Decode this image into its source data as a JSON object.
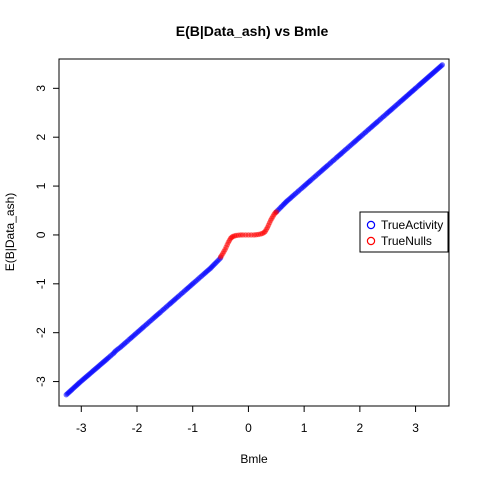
{
  "chart_data": {
    "type": "scatter",
    "title": "E(B|Data_ash) vs Bmle",
    "xlabel": "Bmle",
    "ylabel": "E(B|Data_ash)",
    "xlim": [
      -3.4,
      3.6
    ],
    "ylim": [
      -3.5,
      3.6
    ],
    "xticks": [
      -3,
      -2,
      -1,
      0,
      1,
      2,
      3
    ],
    "yticks": [
      -3,
      -2,
      -1,
      0,
      1,
      2,
      3
    ],
    "grid": false,
    "legend_position": "right",
    "series": [
      {
        "name": "TrueActivity",
        "color": "#0000ff",
        "points": [
          [
            -3.27,
            -3.27
          ],
          [
            -3.03,
            -3.02
          ],
          [
            -2.5,
            -2.5
          ],
          [
            -2.42,
            -2.42
          ],
          [
            -2.38,
            -2.37
          ],
          [
            -2.3,
            -2.3
          ],
          [
            -2.25,
            -2.25
          ],
          [
            -2.2,
            -2.2
          ],
          [
            -2.12,
            -2.12
          ],
          [
            -2.05,
            -2.05
          ],
          [
            -2.0,
            -2.0
          ],
          [
            -1.95,
            -1.95
          ],
          [
            -1.88,
            -1.88
          ],
          [
            -1.8,
            -1.8
          ],
          [
            -1.72,
            -1.72
          ],
          [
            -1.65,
            -1.65
          ],
          [
            -1.58,
            -1.58
          ],
          [
            -1.5,
            -1.5
          ],
          [
            -1.42,
            -1.42
          ],
          [
            -1.35,
            -1.35
          ],
          [
            -1.28,
            -1.28
          ],
          [
            -1.2,
            -1.2
          ],
          [
            -1.12,
            -1.12
          ],
          [
            -1.05,
            -1.05
          ],
          [
            -0.98,
            -0.98
          ],
          [
            -0.9,
            -0.9
          ],
          [
            -0.82,
            -0.82
          ],
          [
            -0.75,
            -0.75
          ],
          [
            -0.68,
            -0.68
          ],
          [
            -0.62,
            -0.61
          ],
          [
            -0.55,
            -0.53
          ],
          [
            -0.5,
            -0.47
          ],
          [
            0.5,
            0.47
          ],
          [
            0.55,
            0.53
          ],
          [
            0.62,
            0.61
          ],
          [
            0.68,
            0.68
          ],
          [
            0.75,
            0.75
          ],
          [
            0.82,
            0.82
          ],
          [
            0.9,
            0.9
          ],
          [
            0.98,
            0.98
          ],
          [
            1.05,
            1.05
          ],
          [
            1.12,
            1.12
          ],
          [
            1.2,
            1.2
          ],
          [
            1.28,
            1.28
          ],
          [
            1.35,
            1.35
          ],
          [
            1.42,
            1.42
          ],
          [
            1.5,
            1.5
          ],
          [
            1.58,
            1.58
          ],
          [
            1.65,
            1.65
          ],
          [
            1.72,
            1.72
          ],
          [
            1.8,
            1.8
          ],
          [
            1.88,
            1.88
          ],
          [
            1.95,
            1.95
          ],
          [
            2.02,
            2.02
          ],
          [
            2.1,
            2.1
          ],
          [
            2.18,
            2.18
          ],
          [
            2.25,
            2.25
          ],
          [
            2.32,
            2.32
          ],
          [
            2.4,
            2.4
          ],
          [
            2.48,
            2.48
          ],
          [
            2.55,
            2.55
          ],
          [
            2.62,
            2.62
          ],
          [
            2.72,
            2.72
          ],
          [
            2.85,
            2.85
          ],
          [
            3.0,
            3.0
          ],
          [
            3.05,
            3.05
          ],
          [
            3.48,
            3.48
          ]
        ]
      },
      {
        "name": "TrueNulls",
        "color": "#ff0000",
        "points": [
          [
            -0.5,
            -0.45
          ],
          [
            -0.48,
            -0.42
          ],
          [
            -0.46,
            -0.38
          ],
          [
            -0.44,
            -0.34
          ],
          [
            -0.42,
            -0.3
          ],
          [
            -0.4,
            -0.25
          ],
          [
            -0.38,
            -0.2
          ],
          [
            -0.36,
            -0.15
          ],
          [
            -0.34,
            -0.11
          ],
          [
            -0.32,
            -0.07
          ],
          [
            -0.3,
            -0.05
          ],
          [
            -0.28,
            -0.03
          ],
          [
            -0.25,
            -0.02
          ],
          [
            -0.22,
            -0.01
          ],
          [
            -0.18,
            -0.005
          ],
          [
            -0.14,
            0.0
          ],
          [
            -0.1,
            0.0
          ],
          [
            -0.05,
            0.0
          ],
          [
            0.0,
            0.0
          ],
          [
            0.05,
            0.0
          ],
          [
            0.1,
            0.0
          ],
          [
            0.14,
            0.005
          ],
          [
            0.18,
            0.01
          ],
          [
            0.22,
            0.02
          ],
          [
            0.25,
            0.03
          ],
          [
            0.28,
            0.05
          ],
          [
            0.3,
            0.07
          ],
          [
            0.32,
            0.11
          ],
          [
            0.34,
            0.15
          ],
          [
            0.36,
            0.2
          ],
          [
            0.38,
            0.25
          ],
          [
            0.4,
            0.3
          ],
          [
            0.42,
            0.34
          ],
          [
            0.44,
            0.38
          ],
          [
            0.46,
            0.42
          ],
          [
            0.48,
            0.45
          ],
          [
            0.5,
            0.47
          ]
        ]
      }
    ]
  }
}
